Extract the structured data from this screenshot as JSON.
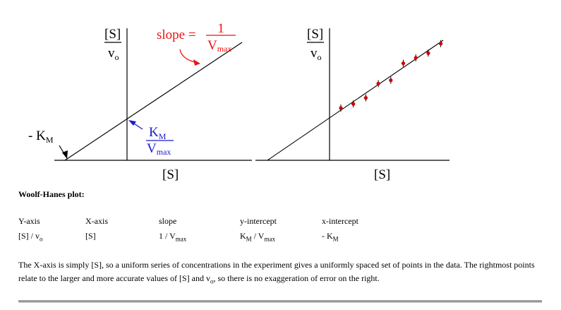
{
  "left_plot": {
    "y_label_num": "[S]",
    "y_label_den": "v",
    "y_label_den_sub": "o",
    "x_label": "[S]",
    "slope_prefix": "slope =",
    "slope_num": "1",
    "slope_den": "V",
    "slope_den_sub": "max",
    "x_intercept_label": "- K",
    "x_intercept_sub": "M",
    "y_intercept_num": "K",
    "y_intercept_num_sub": "M",
    "y_intercept_den": "V",
    "y_intercept_den_sub": "max"
  },
  "right_plot": {
    "y_label_num": "[S]",
    "y_label_den": "v",
    "y_label_den_sub": "o",
    "x_label": "[S]"
  },
  "heading": "Woolf-Hanes plot:",
  "table": {
    "headers": [
      "Y-axis",
      "X-axis",
      "slope",
      "y-intercept",
      "x-intercept"
    ],
    "row": {
      "y_axis": "[S] / v",
      "y_axis_sub": "o",
      "x_axis": "[S]",
      "slope": "1 / V",
      "slope_sub": "max",
      "y_int_a": "K",
      "y_int_a_sub": "M",
      "y_int_mid": " / V",
      "y_int_b_sub": "max",
      "x_int": "- K",
      "x_int_sub": "M"
    }
  },
  "note": {
    "part1": "The X-axis is simply [S], so a uniform series of concentrations in the experiment gives a uniformly spaced set of points in the data. The rightmost points relate to the larger and more accurate values of [S] and v",
    "sub": "o",
    "part2": ", so there is no exaggeration of error on the right."
  },
  "colors": {
    "slope": "#ee1111",
    "intercept": "#1a1ad0",
    "points": "#cc0000",
    "rule": "#9a9a9a"
  },
  "chart_data": {
    "type": "scatter",
    "points": [
      [
        1,
        1.0
      ],
      [
        2,
        1.12
      ],
      [
        3,
        1.3
      ],
      [
        4,
        1.72
      ],
      [
        5,
        1.82
      ],
      [
        6,
        2.32
      ],
      [
        7,
        2.48
      ],
      [
        8,
        2.62
      ],
      [
        9,
        2.9
      ]
    ]
  }
}
